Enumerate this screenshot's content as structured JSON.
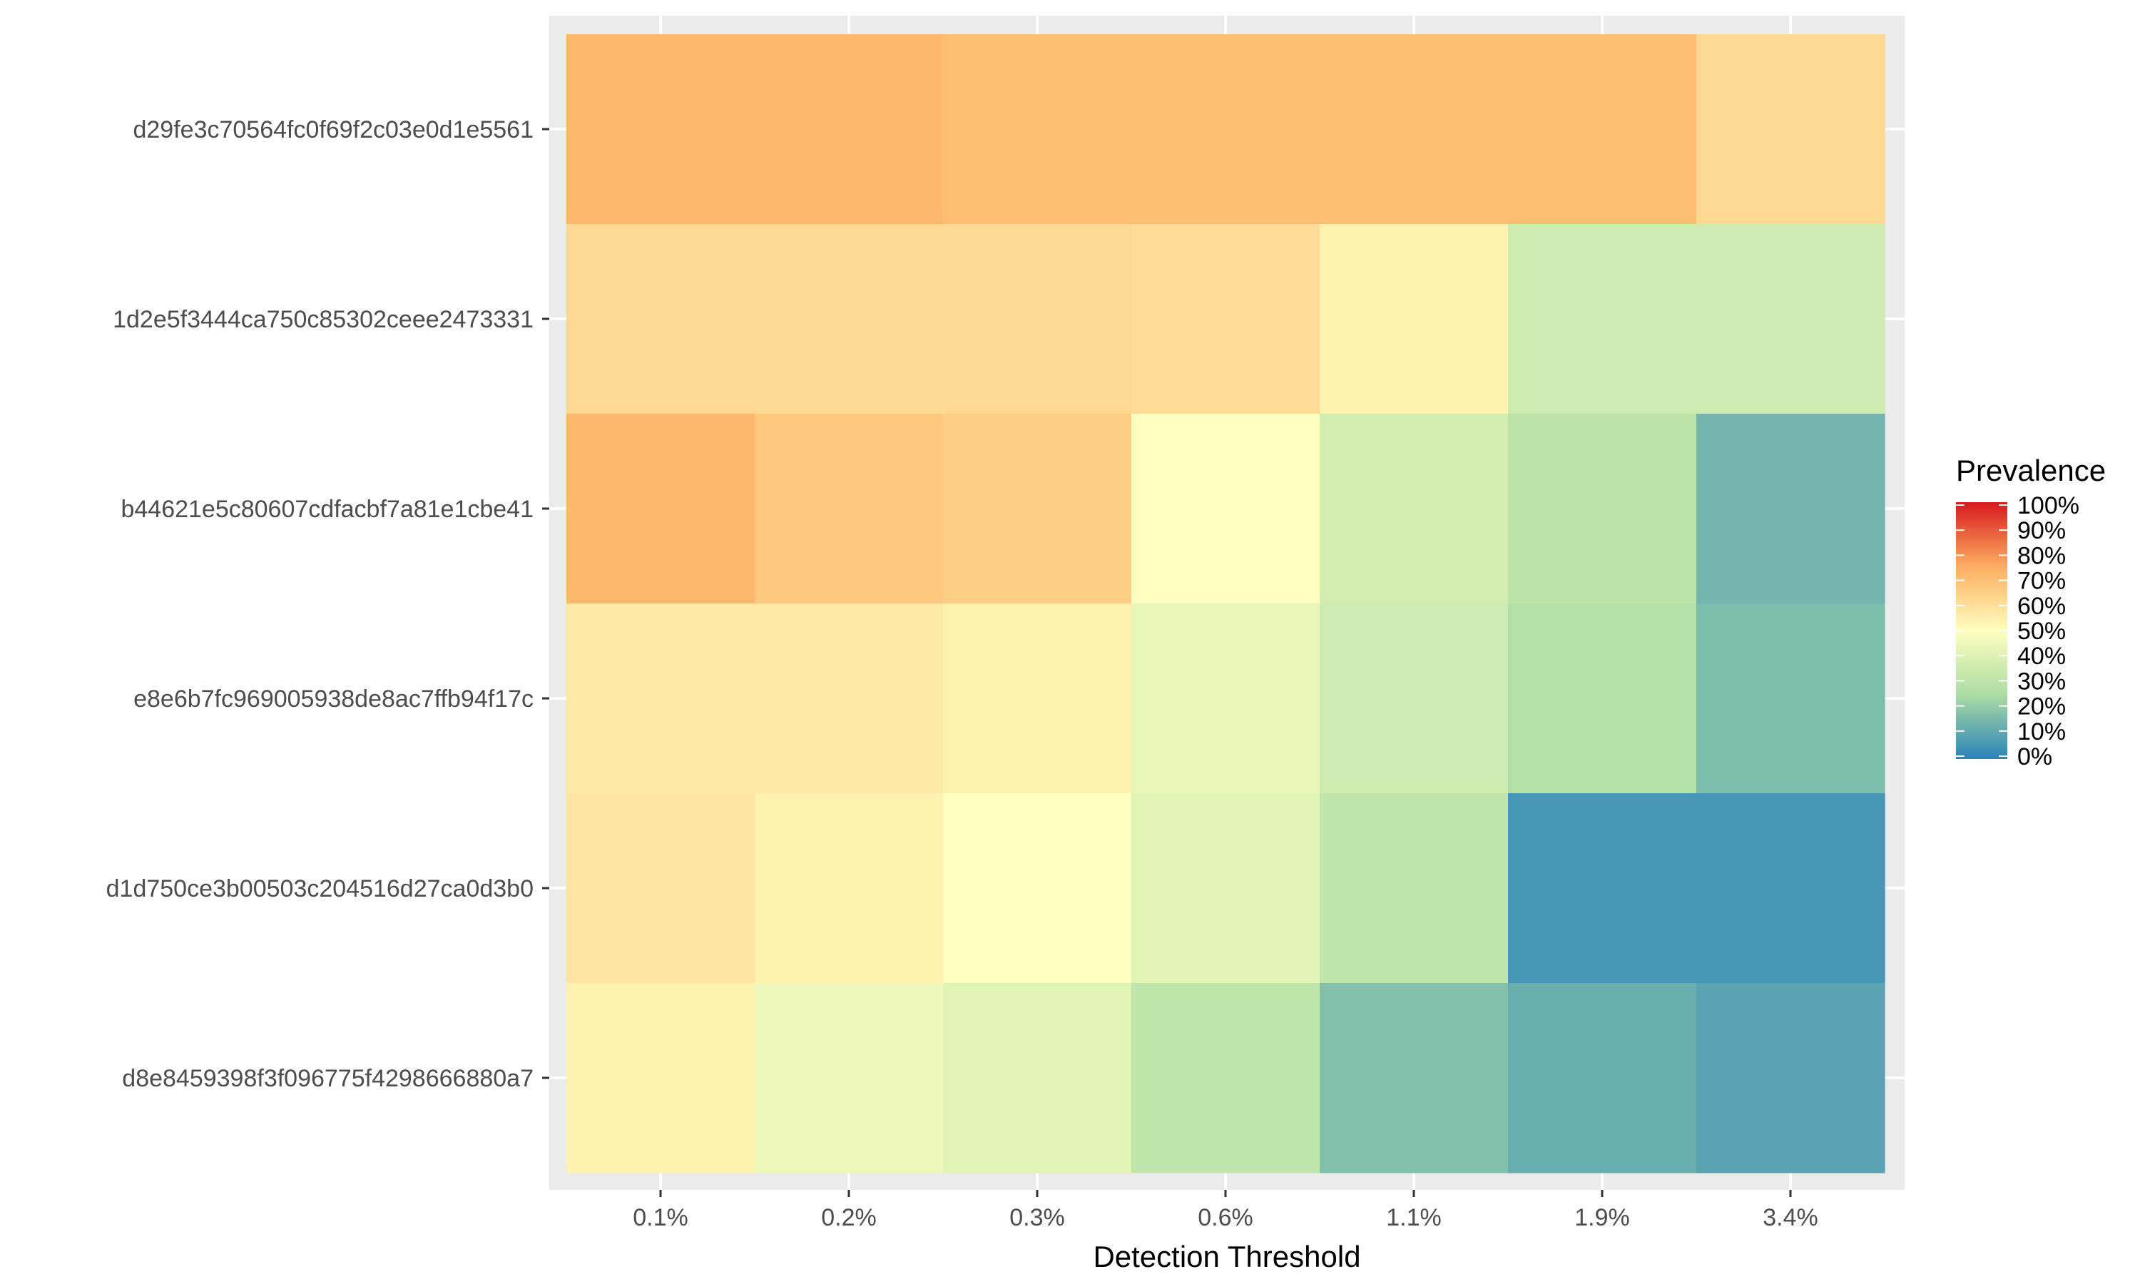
{
  "chart_data": {
    "type": "heatmap",
    "title": "",
    "xlabel": "Detection Threshold",
    "ylabel": "",
    "x_categories": [
      "0.1%",
      "0.2%",
      "0.3%",
      "0.6%",
      "1.1%",
      "1.9%",
      "3.4%"
    ],
    "y_categories": [
      "d29fe3c70564fc0f69f2c03e0d1e5561",
      "1d2e5f3444ca750c85302ceee2473331",
      "b44621e5c80607cdfacbf7a81e1cbe41",
      "e8e6b7fc969005938de8ac7ffb94f17c",
      "d1d750ce3b00503c204516d27ca0d3b0",
      "d8e8459398f3f096775f4298666880a7"
    ],
    "values": [
      [
        72,
        72,
        70,
        70,
        70,
        70,
        62
      ],
      [
        62,
        62,
        62,
        61,
        54,
        35,
        35
      ],
      [
        72,
        67,
        65,
        50,
        37,
        30,
        14
      ],
      [
        57,
        57,
        54,
        43,
        35,
        27,
        16
      ],
      [
        58,
        54,
        50,
        41,
        31,
        5,
        5
      ],
      [
        54,
        45,
        41,
        31,
        17,
        12,
        9
      ]
    ],
    "value_range": [
      0,
      100
    ],
    "grid": true,
    "legend": {
      "title": "Prevalence",
      "position": "right",
      "labels": [
        "100%",
        "90%",
        "80%",
        "70%",
        "60%",
        "50%",
        "40%",
        "30%",
        "20%",
        "10%",
        "0%"
      ]
    },
    "colorscale": [
      "#2B83BA",
      "#ABDDA4",
      "#FFFFBF",
      "#FDAE61",
      "#D7191C"
    ],
    "panel_background": "#EBEBEB",
    "grid_color": "#FFFFFF"
  }
}
